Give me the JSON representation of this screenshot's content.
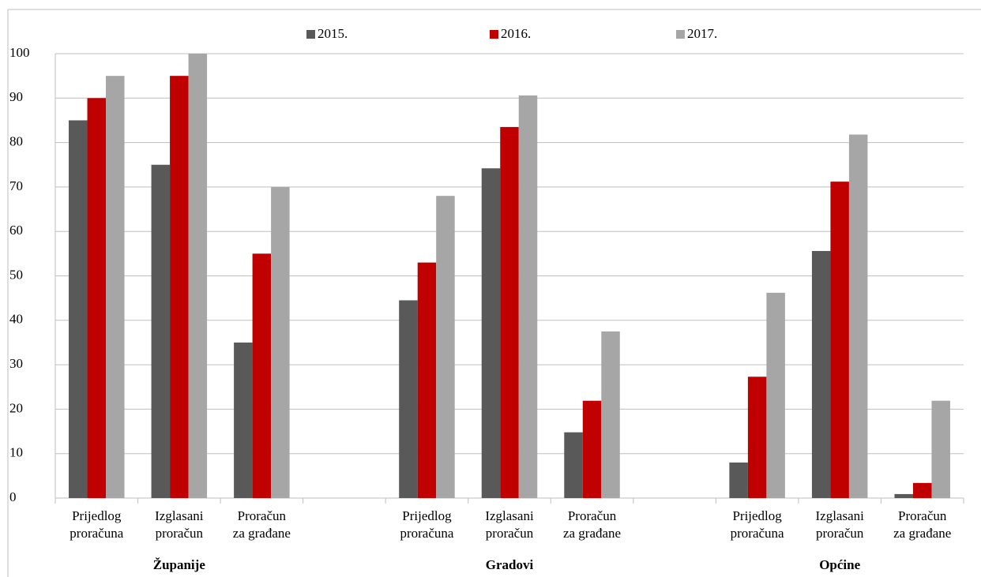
{
  "chart_data": {
    "type": "bar",
    "categories": [
      "Prijedlog\nproračuna",
      "Izglasani\nproračun",
      "Proračun\nza građane",
      null,
      "Prijedlog\nproračuna",
      "Izglasani\nproračun",
      "Proračun\nza građane",
      null,
      "Prijedlog\nproračuna",
      "Izglasani\nproračun",
      "Proračun\nza građane"
    ],
    "groups": [
      "Županije",
      "Gradovi",
      "Općine"
    ],
    "series": [
      {
        "name": "2015.",
        "color": "#595959",
        "values": [
          85,
          75,
          35,
          null,
          44.5,
          74.2,
          14.8,
          null,
          8,
          55.6,
          0.9
        ]
      },
      {
        "name": "2016.",
        "color": "#c00000",
        "values": [
          90,
          95,
          55,
          null,
          53,
          83.5,
          21.9,
          null,
          27.3,
          71.2,
          3.4
        ]
      },
      {
        "name": "2017.",
        "color": "#a6a6a6",
        "values": [
          95,
          100,
          70,
          null,
          68,
          90.6,
          37.5,
          null,
          46.2,
          81.8,
          21.9
        ]
      }
    ],
    "ylim": [
      0,
      100
    ],
    "yticks": [
      0,
      10,
      20,
      30,
      40,
      50,
      60,
      70,
      80,
      90,
      100
    ],
    "grid": true
  }
}
